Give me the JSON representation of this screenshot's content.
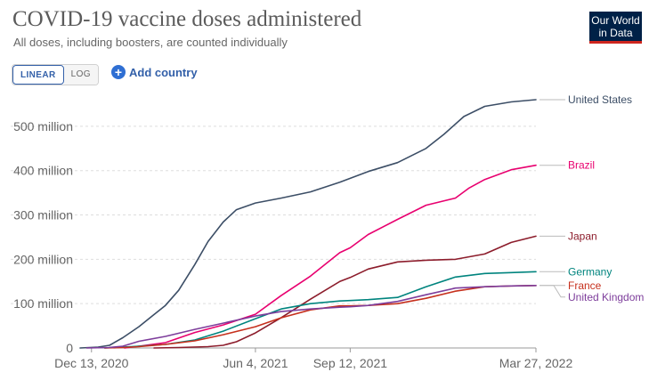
{
  "header": {
    "title": "COVID-19 vaccine doses administered",
    "subtitle": "All doses, including boosters, are counted individually",
    "logo_line1": "Our World",
    "logo_line2": "in Data"
  },
  "controls": {
    "linear_label": "LINEAR",
    "log_label": "LOG",
    "add_country_label": "Add country"
  },
  "colors": {
    "united_states": "#3c4e66",
    "brazil": "#e8006f",
    "japan": "#8c1c2b",
    "germany": "#00847e",
    "france": "#c6301d",
    "united_kingdom": "#7d3d9b"
  },
  "chart_data": {
    "type": "line",
    "title": "COVID-19 vaccine doses administered",
    "subtitle": "All doses, including boosters, are counted individually",
    "ylim": [
      0,
      560
    ],
    "xlim": [
      "2020-12-01",
      "2022-03-27"
    ],
    "y_ticks": [
      0,
      100,
      200,
      300,
      400,
      500
    ],
    "y_tick_labels": [
      "0",
      "100 million",
      "200 million",
      "300 million",
      "400 million",
      "500 million"
    ],
    "x_ticks": [
      "2020-12-13",
      "2021-06-04",
      "2021-09-12",
      "2022-03-27"
    ],
    "x_tick_labels": [
      "Dec 13, 2020",
      "Jun 4, 2021",
      "Sep 12, 2021",
      "Mar 27, 2022"
    ],
    "grid": "horizontal dashed",
    "legend": "inline labels at right end of lines",
    "series": [
      {
        "name": "United States",
        "key": "united_states",
        "points": [
          [
            "2020-12-01",
            0
          ],
          [
            "2020-12-20",
            2
          ],
          [
            "2021-01-01",
            6
          ],
          [
            "2021-01-15",
            23
          ],
          [
            "2021-02-01",
            48
          ],
          [
            "2021-02-15",
            72
          ],
          [
            "2021-03-01",
            96
          ],
          [
            "2021-03-15",
            130
          ],
          [
            "2021-04-01",
            188
          ],
          [
            "2021-04-15",
            240
          ],
          [
            "2021-05-01",
            284
          ],
          [
            "2021-05-15",
            312
          ],
          [
            "2021-06-04",
            327
          ],
          [
            "2021-07-01",
            338
          ],
          [
            "2021-08-01",
            352
          ],
          [
            "2021-09-01",
            374
          ],
          [
            "2021-10-01",
            398
          ],
          [
            "2021-11-01",
            418
          ],
          [
            "2021-12-01",
            450
          ],
          [
            "2021-12-20",
            482
          ],
          [
            "2022-01-10",
            522
          ],
          [
            "2022-02-01",
            545
          ],
          [
            "2022-03-01",
            555
          ],
          [
            "2022-03-27",
            560
          ]
        ]
      },
      {
        "name": "Brazil",
        "key": "brazil",
        "points": [
          [
            "2021-01-17",
            0
          ],
          [
            "2021-02-01",
            4
          ],
          [
            "2021-03-01",
            12
          ],
          [
            "2021-04-01",
            35
          ],
          [
            "2021-05-01",
            52
          ],
          [
            "2021-06-04",
            76
          ],
          [
            "2021-07-01",
            118
          ],
          [
            "2021-08-01",
            162
          ],
          [
            "2021-09-01",
            215
          ],
          [
            "2021-09-12",
            226
          ],
          [
            "2021-10-01",
            256
          ],
          [
            "2021-11-01",
            290
          ],
          [
            "2021-12-01",
            322
          ],
          [
            "2022-01-01",
            338
          ],
          [
            "2022-01-15",
            360
          ],
          [
            "2022-02-01",
            380
          ],
          [
            "2022-03-01",
            402
          ],
          [
            "2022-03-27",
            412
          ]
        ]
      },
      {
        "name": "Japan",
        "key": "japan",
        "points": [
          [
            "2021-02-17",
            0
          ],
          [
            "2021-03-15",
            1
          ],
          [
            "2021-04-15",
            3
          ],
          [
            "2021-05-01",
            6
          ],
          [
            "2021-05-15",
            14
          ],
          [
            "2021-06-04",
            34
          ],
          [
            "2021-07-01",
            68
          ],
          [
            "2021-08-01",
            110
          ],
          [
            "2021-09-01",
            150
          ],
          [
            "2021-09-12",
            159
          ],
          [
            "2021-10-01",
            178
          ],
          [
            "2021-11-01",
            194
          ],
          [
            "2021-12-01",
            198
          ],
          [
            "2022-01-01",
            200
          ],
          [
            "2022-02-01",
            212
          ],
          [
            "2022-03-01",
            238
          ],
          [
            "2022-03-27",
            252
          ]
        ]
      },
      {
        "name": "Germany",
        "key": "germany",
        "points": [
          [
            "2020-12-27",
            0
          ],
          [
            "2021-01-15",
            2
          ],
          [
            "2021-02-01",
            4
          ],
          [
            "2021-03-01",
            8
          ],
          [
            "2021-04-01",
            18
          ],
          [
            "2021-05-01",
            38
          ],
          [
            "2021-06-04",
            66
          ],
          [
            "2021-07-01",
            88
          ],
          [
            "2021-08-01",
            100
          ],
          [
            "2021-09-01",
            106
          ],
          [
            "2021-09-12",
            107
          ],
          [
            "2021-10-01",
            109
          ],
          [
            "2021-11-01",
            114
          ],
          [
            "2021-12-01",
            138
          ],
          [
            "2022-01-01",
            160
          ],
          [
            "2022-02-01",
            168
          ],
          [
            "2022-03-01",
            170
          ],
          [
            "2022-03-27",
            172
          ]
        ]
      },
      {
        "name": "France",
        "key": "france",
        "points": [
          [
            "2020-12-27",
            0
          ],
          [
            "2021-01-15",
            1
          ],
          [
            "2021-02-01",
            3
          ],
          [
            "2021-03-01",
            8
          ],
          [
            "2021-04-01",
            16
          ],
          [
            "2021-05-01",
            30
          ],
          [
            "2021-06-04",
            48
          ],
          [
            "2021-07-01",
            68
          ],
          [
            "2021-08-01",
            86
          ],
          [
            "2021-09-01",
            95
          ],
          [
            "2021-09-12",
            95
          ],
          [
            "2021-10-01",
            96
          ],
          [
            "2021-11-01",
            100
          ],
          [
            "2021-12-01",
            112
          ],
          [
            "2022-01-01",
            128
          ],
          [
            "2022-02-01",
            138
          ],
          [
            "2022-03-01",
            140
          ],
          [
            "2022-03-27",
            141
          ]
        ]
      },
      {
        "name": "United Kingdom",
        "key": "united_kingdom",
        "points": [
          [
            "2020-12-08",
            0
          ],
          [
            "2020-12-31",
            1
          ],
          [
            "2021-01-15",
            4
          ],
          [
            "2021-02-01",
            15
          ],
          [
            "2021-03-01",
            26
          ],
          [
            "2021-04-01",
            42
          ],
          [
            "2021-05-01",
            56
          ],
          [
            "2021-06-04",
            72
          ],
          [
            "2021-07-01",
            82
          ],
          [
            "2021-08-01",
            88
          ],
          [
            "2021-09-01",
            92
          ],
          [
            "2021-09-12",
            93
          ],
          [
            "2021-10-01",
            96
          ],
          [
            "2021-11-01",
            105
          ],
          [
            "2021-12-01",
            120
          ],
          [
            "2022-01-01",
            135
          ],
          [
            "2022-02-01",
            138
          ],
          [
            "2022-03-01",
            140
          ],
          [
            "2022-03-27",
            141
          ]
        ]
      }
    ]
  }
}
